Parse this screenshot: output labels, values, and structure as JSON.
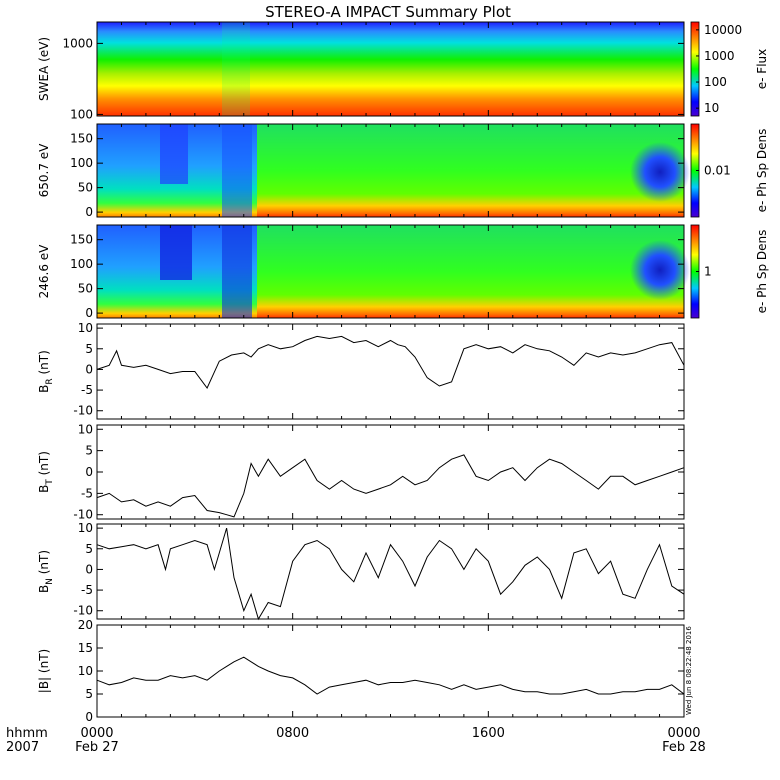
{
  "title": "STEREO-A IMPACT Summary Plot",
  "stamp": "Wed Jun  8 08:22:48 2016",
  "time_axis": {
    "row_label": "hhmm",
    "year_label": "2007",
    "ticks": [
      {
        "hour": 0,
        "label": "0000",
        "date": "Feb 27"
      },
      {
        "hour": 8,
        "label": "0800",
        "date": ""
      },
      {
        "hour": 16,
        "label": "1600",
        "date": ""
      },
      {
        "hour": 24,
        "label": "0000",
        "date": "Feb 28"
      }
    ]
  },
  "chart_data": [
    {
      "type": "heatmap",
      "ylabel": "SWEA (eV)",
      "yscale": "log",
      "ylim": [
        95,
        2000
      ],
      "yticks": [
        {
          "v": 100,
          "label": "100"
        },
        {
          "v": 1000,
          "label": "1000"
        }
      ],
      "colorbar": {
        "label": "e- Flux",
        "scale": "log",
        "range": [
          5,
          20000
        ],
        "ticks": [
          {
            "v": 10,
            "label": "10"
          },
          {
            "v": 100,
            "label": "100"
          },
          {
            "v": 1000,
            "label": "1000"
          },
          {
            "v": 10000,
            "label": "10000"
          }
        ]
      }
    },
    {
      "type": "heatmap",
      "ylabel": "650.7 eV",
      "ylim": [
        -10,
        180
      ],
      "yticks": [
        {
          "v": 0,
          "label": "0"
        },
        {
          "v": 50,
          "label": "50"
        },
        {
          "v": 100,
          "label": "100"
        },
        {
          "v": 150,
          "label": "150"
        }
      ],
      "colorbar": {
        "label": "e- Ph Sp Dens",
        "ticks": [
          {
            "v": 0.01,
            "label": "0.01"
          }
        ]
      }
    },
    {
      "type": "heatmap",
      "ylabel": "246.6 eV",
      "ylim": [
        -10,
        180
      ],
      "yticks": [
        {
          "v": 0,
          "label": "0"
        },
        {
          "v": 50,
          "label": "50"
        },
        {
          "v": 100,
          "label": "100"
        },
        {
          "v": 150,
          "label": "150"
        }
      ],
      "colorbar": {
        "label": "e- Ph Sp Dens",
        "ticks": [
          {
            "v": 1,
            "label": "1"
          }
        ]
      }
    },
    {
      "type": "line",
      "ylabel": "B_R (nT)",
      "ylim": [
        -12,
        11
      ],
      "yticks": [
        -10,
        -5,
        0,
        5,
        10
      ],
      "x_hours": [
        0,
        0.5,
        0.8,
        1,
        1.5,
        2,
        2.5,
        3,
        3.5,
        4,
        4.5,
        5,
        5.5,
        6,
        6.3,
        6.6,
        7,
        7.5,
        8,
        8.5,
        9,
        9.5,
        10,
        10.5,
        11,
        11.5,
        12,
        12.3,
        12.6,
        13,
        13.5,
        14,
        14.5,
        15,
        15.5,
        16,
        16.5,
        17,
        17.5,
        18,
        18.5,
        19,
        19.5,
        20,
        20.5,
        21,
        21.5,
        22,
        22.5,
        23,
        23.5,
        24
      ],
      "values": [
        0,
        1,
        4.5,
        1,
        0.5,
        1,
        0,
        -1,
        -0.5,
        -0.5,
        -4.5,
        2,
        3.5,
        4,
        3,
        5,
        6,
        5,
        5.5,
        7,
        8,
        7.5,
        8,
        6.5,
        7,
        5.5,
        7,
        6,
        5.5,
        3,
        -2,
        -4,
        -3,
        5,
        6,
        5,
        5.5,
        4,
        6,
        5,
        4.5,
        3,
        1,
        4,
        3,
        4,
        3.5,
        4,
        5,
        6,
        6.5,
        1
      ]
    },
    {
      "type": "line",
      "ylabel": "B_T (nT)",
      "ylim": [
        -11,
        11
      ],
      "yticks": [
        -10,
        -5,
        0,
        5,
        10
      ],
      "x_hours": [
        0,
        0.5,
        1,
        1.5,
        2,
        2.5,
        3,
        3.5,
        4,
        4.5,
        5,
        5.3,
        5.6,
        6,
        6.3,
        6.6,
        7,
        7.5,
        8,
        8.5,
        9,
        9.5,
        10,
        10.5,
        11,
        11.5,
        12,
        12.5,
        13,
        13.5,
        14,
        14.5,
        15,
        15.5,
        16,
        16.5,
        17,
        17.5,
        18,
        18.5,
        19,
        19.5,
        20,
        20.5,
        21,
        21.5,
        22,
        22.5,
        23,
        23.5,
        24
      ],
      "values": [
        -6,
        -5,
        -7,
        -6.5,
        -8,
        -7,
        -8,
        -6,
        -5.5,
        -9,
        -9.5,
        -10,
        -10.5,
        -5,
        2,
        -1,
        3,
        -1,
        1,
        3,
        -2,
        -4,
        -2,
        -4,
        -5,
        -4,
        -3,
        -1,
        -3,
        -2,
        1,
        3,
        4,
        -1,
        -2,
        0,
        1,
        -2,
        1,
        3,
        2,
        0,
        -2,
        -4,
        -1,
        -1,
        -3,
        -2,
        -1,
        0,
        1
      ]
    },
    {
      "type": "line",
      "ylabel": "B_N (nT)",
      "ylim": [
        -12,
        11
      ],
      "yticks": [
        -10,
        -5,
        0,
        5,
        10
      ],
      "x_hours": [
        0,
        0.5,
        1,
        1.5,
        2,
        2.5,
        2.8,
        3,
        3.5,
        4,
        4.5,
        4.8,
        5,
        5.3,
        5.6,
        6,
        6.3,
        6.6,
        7,
        7.5,
        8,
        8.5,
        9,
        9.5,
        10,
        10.5,
        11,
        11.5,
        12,
        12.5,
        13,
        13.5,
        14,
        14.5,
        15,
        15.5,
        16,
        16.5,
        17,
        17.5,
        18,
        18.5,
        19,
        19.5,
        20,
        20.5,
        21,
        21.5,
        22,
        22.5,
        23,
        23.5,
        24
      ],
      "values": [
        6,
        5,
        5.5,
        6,
        5,
        6,
        0,
        5,
        6,
        7,
        6,
        0,
        4,
        10,
        -2,
        -10,
        -6,
        -12,
        -8,
        -9,
        2,
        6,
        7,
        5,
        0,
        -3,
        4,
        -2,
        6,
        2,
        -4,
        3,
        7,
        5,
        0,
        5,
        2,
        -6,
        -3,
        1,
        3,
        0,
        -7,
        4,
        5,
        -1,
        2,
        -6,
        -7,
        0,
        6,
        -4,
        -6
      ]
    },
    {
      "type": "line",
      "ylabel": "|B| (nT)",
      "ylim": [
        0,
        20
      ],
      "yticks": [
        0,
        5,
        10,
        15,
        20
      ],
      "x_hours": [
        0,
        0.5,
        1,
        1.5,
        2,
        2.5,
        3,
        3.5,
        4,
        4.5,
        5,
        5.3,
        5.6,
        6,
        6.3,
        6.6,
        7,
        7.5,
        8,
        8.5,
        9,
        9.5,
        10,
        10.5,
        11,
        11.5,
        12,
        12.5,
        13,
        13.5,
        14,
        14.5,
        15,
        15.5,
        16,
        16.5,
        17,
        17.5,
        18,
        18.5,
        19,
        19.5,
        20,
        20.5,
        21,
        21.5,
        22,
        22.5,
        23,
        23.5,
        24
      ],
      "values": [
        8,
        7,
        7.5,
        8.5,
        8,
        8,
        9,
        8.5,
        9,
        8,
        10,
        11,
        12,
        13,
        12,
        11,
        10,
        9,
        8.5,
        7,
        5,
        6.5,
        7,
        7.5,
        8,
        7,
        7.5,
        7.5,
        8,
        7.5,
        7,
        6,
        7,
        6,
        6.5,
        7,
        6,
        5.5,
        5.5,
        5,
        5,
        5.5,
        6,
        5,
        5,
        5.5,
        5.5,
        6,
        6,
        7,
        5
      ]
    }
  ]
}
